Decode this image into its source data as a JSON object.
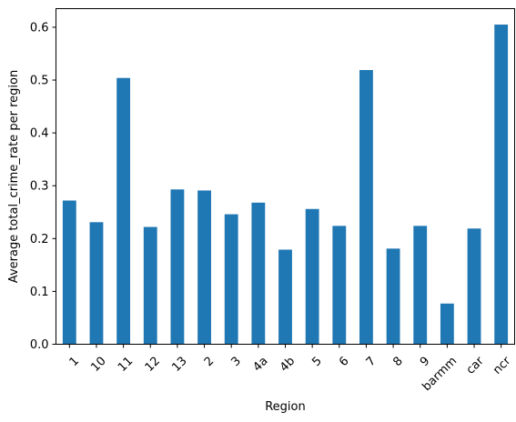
{
  "chart_data": {
    "type": "bar",
    "title": "",
    "xlabel": "Region",
    "ylabel": "Average total_crime_rate per region",
    "categories": [
      "1",
      "10",
      "11",
      "12",
      "13",
      "2",
      "3",
      "4a",
      "4b",
      "5",
      "6",
      "7",
      "8",
      "9",
      "barmm",
      "car",
      "ncr"
    ],
    "values": [
      0.272,
      0.231,
      0.504,
      0.222,
      0.293,
      0.291,
      0.246,
      0.268,
      0.179,
      0.256,
      0.224,
      0.519,
      0.181,
      0.224,
      0.077,
      0.219,
      0.605
    ],
    "ylim": [
      0,
      0.6352
    ],
    "yticks": [
      "0.0",
      "0.1",
      "0.2",
      "0.3",
      "0.4",
      "0.5",
      "0.6"
    ],
    "bar_color": "#1f77b4",
    "grid": false,
    "legend": "none"
  }
}
